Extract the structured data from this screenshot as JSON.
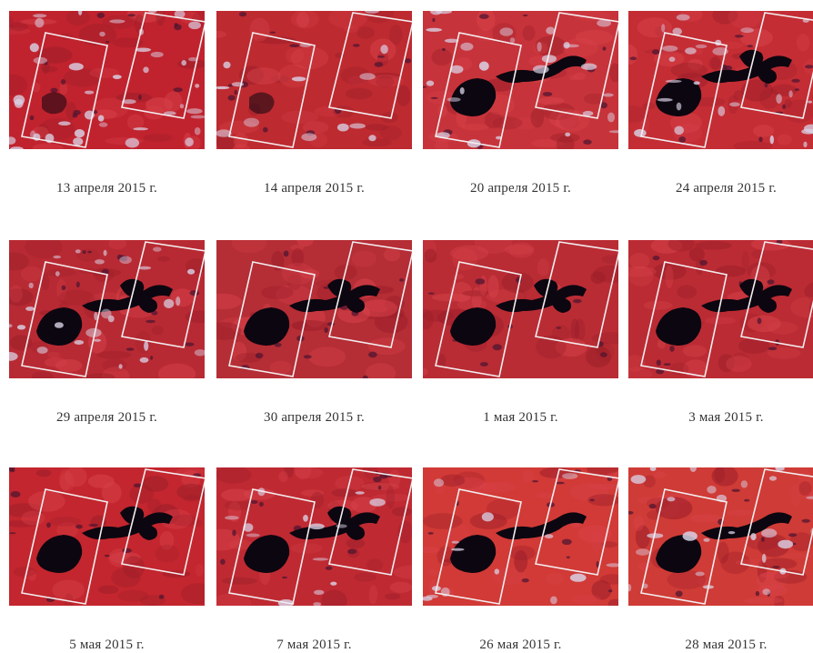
{
  "panels": [
    {
      "caption": "13 апреля 2015 г.",
      "flood": 1,
      "clouds": 3,
      "tint": "#c0232e"
    },
    {
      "caption": "14 апреля 2015 г.",
      "flood": 1,
      "clouds": 1,
      "tint": "#bd2a30"
    },
    {
      "caption": "20 апреля 2015 г.",
      "flood": 2,
      "clouds": 2,
      "tint": "#c7333a"
    },
    {
      "caption": "24 апреля 2015 г.",
      "flood": 3,
      "clouds": 2,
      "tint": "#c42d34"
    },
    {
      "caption": "29 апреля 2015 г.",
      "flood": 3,
      "clouds": 2,
      "tint": "#b82a33"
    },
    {
      "caption": "30 апреля 2015 г.",
      "flood": 3,
      "clouds": 0,
      "tint": "#b52d35"
    },
    {
      "caption": "1 мая 2015 г.",
      "flood": 3,
      "clouds": 0,
      "tint": "#b92c34"
    },
    {
      "caption": "3 мая 2015 г.",
      "flood": 3,
      "clouds": 0,
      "tint": "#bb2b33"
    },
    {
      "caption": "5 мая 2015 г.",
      "flood": 3,
      "clouds": 0,
      "tint": "#c3262e"
    },
    {
      "caption": "7 мая 2015 г.",
      "flood": 3,
      "clouds": 1,
      "tint": "#bf2a32"
    },
    {
      "caption": "26 мая 2015 г.",
      "flood": 2,
      "clouds": 1,
      "tint": "#d13a36"
    },
    {
      "caption": "28 мая 2015 г.",
      "flood": 2,
      "clouds": 2,
      "tint": "#cf3b36"
    }
  ]
}
